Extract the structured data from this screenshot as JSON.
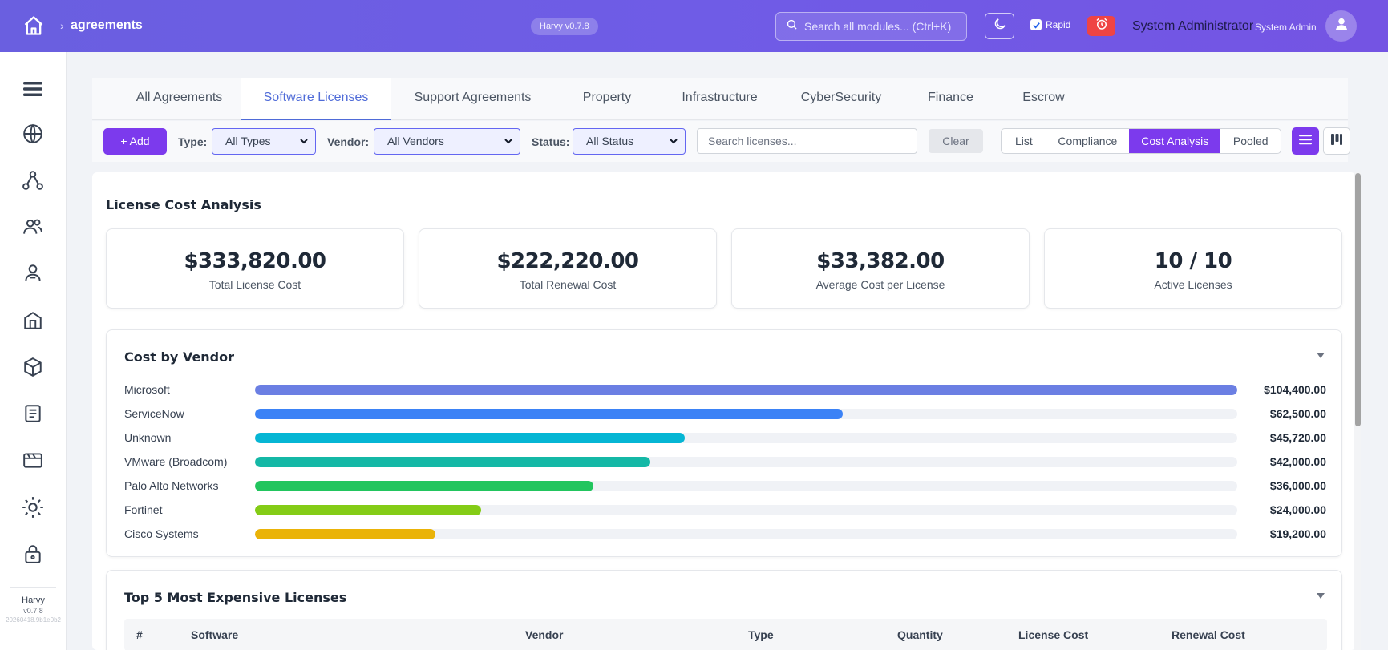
{
  "topbar": {
    "breadcrumb_sep": "›",
    "breadcrumb": "agreements",
    "version": "Harvy v0.7.8",
    "search_placeholder": "Search all modules... (Ctrl+K)",
    "rapid_label": "Rapid",
    "rapid_checked": true,
    "user_name": "System Administrator",
    "user_role": "System Admin"
  },
  "sidebar": {
    "icons": [
      "menu-icon",
      "globe-icon",
      "network-icon",
      "users-icon",
      "user-icon",
      "building-icon",
      "cube-icon",
      "document-icon",
      "card-icon",
      "settings-sun-icon",
      "lock-icon"
    ],
    "app_name": "Harvy",
    "app_version": "v0.7.8",
    "build": "20260418.9b1e0b2"
  },
  "tabs": [
    {
      "label": "All Agreements",
      "active": false
    },
    {
      "label": "Software Licenses",
      "active": true
    },
    {
      "label": "Support Agreements",
      "active": false
    },
    {
      "label": "Property",
      "active": false
    },
    {
      "label": "Infrastructure",
      "active": false
    },
    {
      "label": "CyberSecurity",
      "active": false
    },
    {
      "label": "Finance",
      "active": false
    },
    {
      "label": "Escrow",
      "active": false
    }
  ],
  "filters": {
    "add_label": "+ Add",
    "type_label": "Type:",
    "type_value": "All Types",
    "vendor_label": "Vendor:",
    "vendor_value": "All Vendors",
    "status_label": "Status:",
    "status_value": "All Status",
    "search_placeholder": "Search licenses...",
    "clear_label": "Clear",
    "views": [
      {
        "label": "List",
        "active": false
      },
      {
        "label": "Compliance",
        "active": false
      },
      {
        "label": "Cost Analysis",
        "active": true
      },
      {
        "label": "Pooled",
        "active": false
      }
    ]
  },
  "analysis": {
    "title": "License Cost Analysis",
    "kpis": [
      {
        "value": "$333,820.00",
        "label": "Total License Cost"
      },
      {
        "value": "$222,220.00",
        "label": "Total Renewal Cost"
      },
      {
        "value": "$33,382.00",
        "label": "Average Cost per License"
      },
      {
        "value": "10 / 10",
        "label": "Active Licenses"
      }
    ],
    "vendor_panel_title": "Cost by Vendor",
    "top_panel_title": "Top 5 Most Expensive Licenses",
    "table_headers": [
      "#",
      "Software",
      "Vendor",
      "Type",
      "Quantity",
      "License Cost",
      "Renewal Cost"
    ]
  },
  "chart_data": {
    "type": "bar",
    "orientation": "horizontal",
    "categories": [
      "Microsoft",
      "ServiceNow",
      "Unknown",
      "VMware (Broadcom)",
      "Palo Alto Networks",
      "Fortinet",
      "Cisco Systems"
    ],
    "values": [
      104400,
      62500,
      45720,
      42000,
      36000,
      24000,
      19200
    ],
    "value_labels": [
      "$104,400.00",
      "$62,500.00",
      "$45,720.00",
      "$42,000.00",
      "$36,000.00",
      "$24,000.00",
      "$19,200.00"
    ],
    "colors": [
      "#6b7fe3",
      "#3b82f6",
      "#06b6d4",
      "#14b8a6",
      "#22c55e",
      "#84cc16",
      "#eab308"
    ],
    "xlim": [
      0,
      104400
    ]
  },
  "colors": {
    "accent": "#7c3aed",
    "tab_active": "#4f6bd8",
    "topbar": "#6a5fe0",
    "alarm": "#ef4444"
  }
}
